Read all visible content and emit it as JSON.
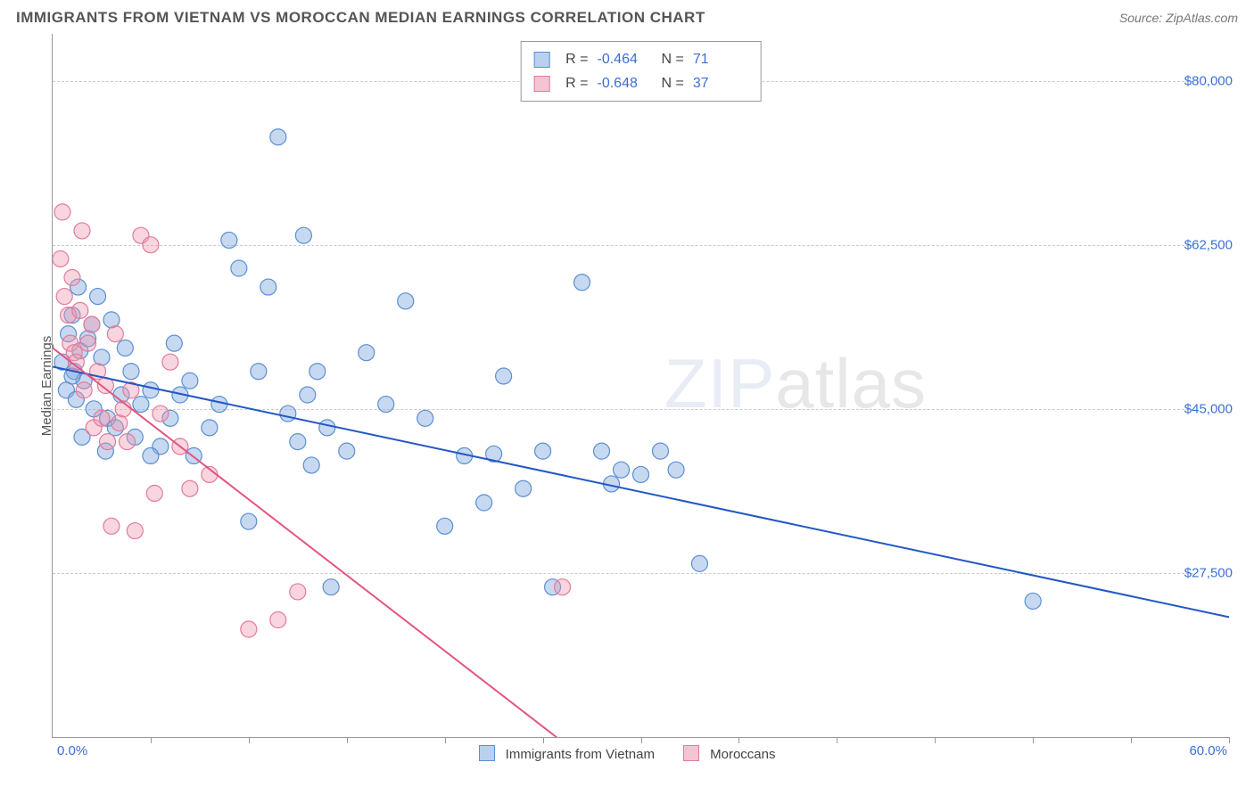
{
  "title": "IMMIGRANTS FROM VIETNAM VS MOROCCAN MEDIAN EARNINGS CORRELATION CHART",
  "source_label": "Source: ZipAtlas.com",
  "ylabel": "Median Earnings",
  "watermark_a": "ZIP",
  "watermark_b": "atlas",
  "chart": {
    "type": "scatter-with-regression",
    "background_color": "#ffffff",
    "grid_color": "#cccccc",
    "axis_color": "#999999",
    "xlim": [
      0,
      60
    ],
    "ylim": [
      10000,
      85000
    ],
    "x_tick_positions": [
      5,
      10,
      15,
      20,
      25,
      30,
      35,
      40,
      45,
      50,
      55,
      60
    ],
    "y_gridlines": [
      27500,
      45000,
      62500,
      80000
    ],
    "y_tick_labels": [
      "$27,500",
      "$45,000",
      "$62,500",
      "$80,000"
    ],
    "x_min_label": "0.0%",
    "x_max_label": "60.0%",
    "point_radius": 9,
    "point_stroke_width": 1.2,
    "regression_line_width": 2
  },
  "series": [
    {
      "id": "vietnam",
      "label": "Immigrants from Vietnam",
      "fill": "rgba(130,170,225,0.45)",
      "stroke": "#5b8fd1",
      "line_color": "#2257c5",
      "swatch_fill": "#b9d0ee",
      "swatch_border": "#5b8fd1",
      "R": "-0.464",
      "N": "71",
      "regression": {
        "x1": 0,
        "y1": 49500,
        "x2": 60,
        "y2": 22800
      },
      "points": [
        [
          0.5,
          50000
        ],
        [
          0.7,
          47000
        ],
        [
          0.8,
          53000
        ],
        [
          1.0,
          55000
        ],
        [
          1.1,
          49000
        ],
        [
          1.2,
          46000
        ],
        [
          1.3,
          58000
        ],
        [
          1.4,
          51200
        ],
        [
          1.5,
          42000
        ],
        [
          1.6,
          48000
        ],
        [
          1.8,
          52500
        ],
        [
          2.0,
          54000
        ],
        [
          2.1,
          45000
        ],
        [
          2.3,
          57000
        ],
        [
          2.5,
          50500
        ],
        [
          2.7,
          40500
        ],
        [
          2.8,
          44000
        ],
        [
          3.0,
          54500
        ],
        [
          3.2,
          43000
        ],
        [
          3.5,
          46500
        ],
        [
          4.0,
          49000
        ],
        [
          4.2,
          42000
        ],
        [
          4.5,
          45500
        ],
        [
          5.0,
          47000
        ],
        [
          5.5,
          41000
        ],
        [
          6.0,
          44000
        ],
        [
          6.5,
          46500
        ],
        [
          7.0,
          48000
        ],
        [
          7.2,
          40000
        ],
        [
          8.0,
          43000
        ],
        [
          8.5,
          45500
        ],
        [
          9.0,
          63000
        ],
        [
          9.5,
          60000
        ],
        [
          10.0,
          33000
        ],
        [
          10.5,
          49000
        ],
        [
          11.0,
          58000
        ],
        [
          11.5,
          74000
        ],
        [
          12.0,
          44500
        ],
        [
          12.5,
          41500
        ],
        [
          12.8,
          63500
        ],
        [
          13.0,
          46500
        ],
        [
          13.2,
          39000
        ],
        [
          13.5,
          49000
        ],
        [
          14.0,
          43000
        ],
        [
          14.2,
          26000
        ],
        [
          15.0,
          40500
        ],
        [
          16.0,
          51000
        ],
        [
          17.0,
          45500
        ],
        [
          18.0,
          56500
        ],
        [
          19.0,
          44000
        ],
        [
          20.0,
          32500
        ],
        [
          21.0,
          40000
        ],
        [
          22.0,
          35000
        ],
        [
          22.5,
          40200
        ],
        [
          23.0,
          48500
        ],
        [
          24.0,
          36500
        ],
        [
          25.0,
          40500
        ],
        [
          25.5,
          26000
        ],
        [
          27.0,
          58500
        ],
        [
          28.0,
          40500
        ],
        [
          28.5,
          37000
        ],
        [
          29.0,
          38500
        ],
        [
          30.0,
          38000
        ],
        [
          31.0,
          40500
        ],
        [
          31.8,
          38500
        ],
        [
          33.0,
          28500
        ],
        [
          50.0,
          24500
        ],
        [
          5.0,
          40000
        ],
        [
          1.0,
          48500
        ],
        [
          3.7,
          51500
        ],
        [
          6.2,
          52000
        ]
      ]
    },
    {
      "id": "moroccan",
      "label": "Moroccans",
      "fill": "rgba(240,150,175,0.40)",
      "stroke": "#e47a9a",
      "line_color": "#e2557f",
      "swatch_fill": "#f5c4d3",
      "swatch_border": "#e47a9a",
      "R": "-0.648",
      "N": "37",
      "regression": {
        "x1": 0,
        "y1": 51500,
        "x2": 26,
        "y2": 9500
      },
      "points": [
        [
          0.4,
          61000
        ],
        [
          0.5,
          66000
        ],
        [
          0.6,
          57000
        ],
        [
          0.8,
          55000
        ],
        [
          0.9,
          52000
        ],
        [
          1.0,
          59000
        ],
        [
          1.1,
          51000
        ],
        [
          1.2,
          50000
        ],
        [
          1.4,
          55500
        ],
        [
          1.5,
          64000
        ],
        [
          1.6,
          47000
        ],
        [
          1.8,
          52000
        ],
        [
          2.0,
          54000
        ],
        [
          2.1,
          43000
        ],
        [
          2.3,
          49000
        ],
        [
          2.5,
          44000
        ],
        [
          2.7,
          47500
        ],
        [
          2.8,
          41500
        ],
        [
          3.0,
          32500
        ],
        [
          3.2,
          53000
        ],
        [
          3.4,
          43500
        ],
        [
          3.6,
          45000
        ],
        [
          3.8,
          41500
        ],
        [
          4.0,
          47000
        ],
        [
          4.2,
          32000
        ],
        [
          4.5,
          63500
        ],
        [
          5.0,
          62500
        ],
        [
          5.2,
          36000
        ],
        [
          5.5,
          44500
        ],
        [
          6.0,
          50000
        ],
        [
          6.5,
          41000
        ],
        [
          7.0,
          36500
        ],
        [
          8.0,
          38000
        ],
        [
          10.0,
          21500
        ],
        [
          11.5,
          22500
        ],
        [
          12.5,
          25500
        ],
        [
          26.0,
          26000
        ]
      ]
    }
  ],
  "stats_labels": {
    "R": "R =",
    "N": "N ="
  },
  "bottom_legend": {
    "a": "Immigrants from Vietnam",
    "b": "Moroccans"
  }
}
